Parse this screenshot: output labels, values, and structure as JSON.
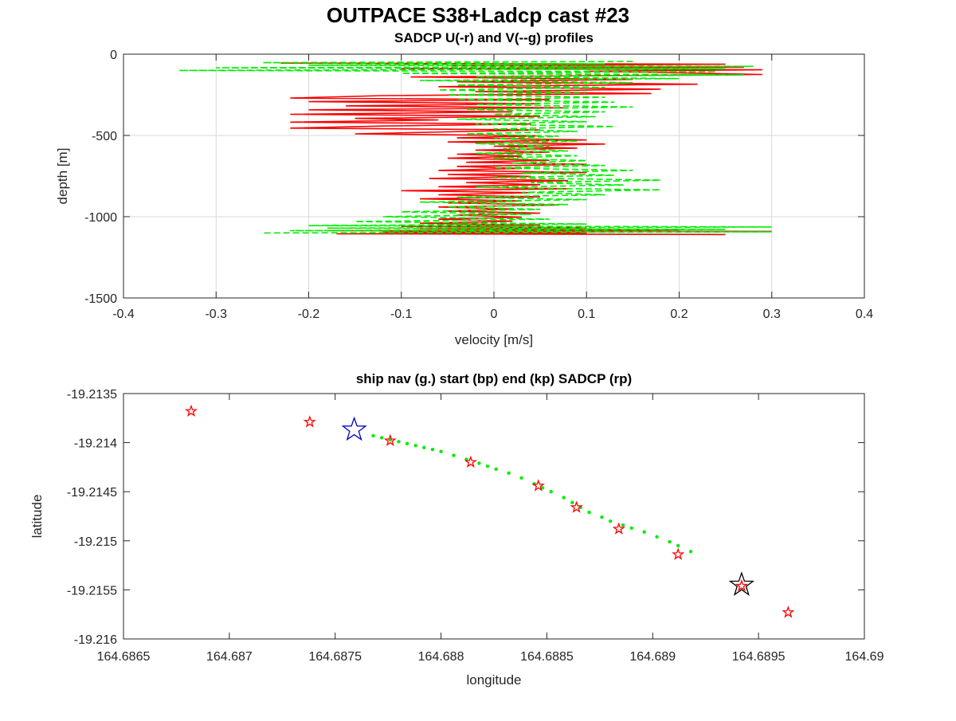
{
  "figure": {
    "title": "OUTPACE S38+Ladcp cast #23"
  },
  "colors": {
    "u_series": "#ff0000",
    "v_series": "#00ee00",
    "start_marker": "#0000cc",
    "end_marker": "#000000",
    "sadcp_marker": "#ff0000",
    "nav_points": "#00ee00"
  },
  "chart_data": [
    {
      "type": "line",
      "title": "SADCP U(-r) and V(--g) profiles",
      "xlabel": "velocity [m/s]",
      "ylabel": "depth [m]",
      "xlim": [
        -0.4,
        0.4
      ],
      "ylim": [
        -1500,
        0
      ],
      "xticks": [
        "-0.4",
        "-0.3",
        "-0.2",
        "-0.1",
        "0",
        "0.1",
        "0.2",
        "0.3",
        "0.4"
      ],
      "yticks": [
        "0",
        "-500",
        "-1000",
        "-1500"
      ],
      "grid": true,
      "series": [
        {
          "color": "red",
          "style": "solid",
          "points": [
            [
              -0.23,
              -55
            ],
            [
              0.25,
              -62
            ],
            [
              -0.05,
              -70
            ],
            [
              0.27,
              -80
            ],
            [
              -0.1,
              -88
            ],
            [
              0.29,
              -96
            ],
            [
              0.1,
              -105
            ],
            [
              0.2,
              -115
            ],
            [
              0.29,
              -125
            ],
            [
              -0.09,
              -140
            ],
            [
              0.15,
              -155
            ],
            [
              -0.04,
              -170
            ],
            [
              0.22,
              -185
            ],
            [
              -0.06,
              -200
            ],
            [
              0.18,
              -215
            ],
            [
              -0.02,
              -230
            ],
            [
              0.17,
              -242
            ],
            [
              -0.12,
              -255
            ],
            [
              -0.22,
              -270
            ],
            [
              0.06,
              -280
            ],
            [
              -0.2,
              -292
            ],
            [
              0.05,
              -305
            ],
            [
              -0.16,
              -318
            ],
            [
              0.08,
              -330
            ],
            [
              -0.2,
              -342
            ],
            [
              0.02,
              -355
            ],
            [
              -0.22,
              -370
            ],
            [
              0.05,
              -382
            ],
            [
              -0.15,
              -395
            ],
            [
              -0.06,
              -405
            ],
            [
              -0.22,
              -418
            ],
            [
              0.04,
              -430
            ],
            [
              -0.12,
              -442
            ],
            [
              -0.22,
              -455
            ],
            [
              0.05,
              -466
            ],
            [
              -0.05,
              -478
            ],
            [
              -0.15,
              -490
            ],
            [
              0.05,
              -502
            ],
            [
              -0.04,
              -515
            ],
            [
              0.1,
              -528
            ],
            [
              -0.05,
              -540
            ],
            [
              0.12,
              -553
            ],
            [
              0.0,
              -566
            ],
            [
              0.09,
              -578
            ],
            [
              -0.02,
              -590
            ],
            [
              0.06,
              -603
            ],
            [
              -0.04,
              -615
            ],
            [
              0.03,
              -628
            ],
            [
              -0.05,
              -640
            ],
            [
              0.06,
              -653
            ],
            [
              -0.03,
              -665
            ],
            [
              0.1,
              -678
            ],
            [
              -0.04,
              -690
            ],
            [
              0.03,
              -703
            ],
            [
              -0.06,
              -715
            ],
            [
              0.1,
              -728
            ],
            [
              -0.05,
              -740
            ],
            [
              0.04,
              -752
            ],
            [
              -0.07,
              -765
            ],
            [
              0.08,
              -778
            ],
            [
              -0.03,
              -790
            ],
            [
              0.05,
              -803
            ],
            [
              -0.06,
              -815
            ],
            [
              0.08,
              -828
            ],
            [
              -0.1,
              -840
            ],
            [
              0.04,
              -852
            ],
            [
              -0.06,
              -865
            ],
            [
              0.05,
              -878
            ],
            [
              -0.08,
              -890
            ],
            [
              0.03,
              -903
            ],
            [
              -0.05,
              -915
            ],
            [
              0.07,
              -928
            ],
            [
              -0.06,
              -940
            ],
            [
              0.02,
              -953
            ],
            [
              -0.05,
              -965
            ],
            [
              0.05,
              -978
            ],
            [
              -0.04,
              -990
            ],
            [
              0.03,
              -1003
            ],
            [
              -0.06,
              -1015
            ],
            [
              0.02,
              -1028
            ],
            [
              -0.08,
              -1040
            ],
            [
              0.05,
              -1052
            ],
            [
              -0.1,
              -1060
            ],
            [
              0.1,
              -1067
            ],
            [
              -0.08,
              -1073
            ],
            [
              0.2,
              -1080
            ],
            [
              -0.18,
              -1086
            ],
            [
              0.3,
              -1090
            ],
            [
              -0.12,
              -1095
            ],
            [
              0.1,
              -1100
            ],
            [
              -0.17,
              -1105
            ],
            [
              0.25,
              -1110
            ]
          ]
        },
        {
          "color": "green",
          "style": "dashed",
          "points": [
            [
              0.15,
              -45
            ],
            [
              -0.25,
              -52
            ],
            [
              0.12,
              -60
            ],
            [
              -0.2,
              -68
            ],
            [
              0.28,
              -75
            ],
            [
              -0.3,
              -84
            ],
            [
              0.25,
              -90
            ],
            [
              -0.34,
              -100
            ],
            [
              0.24,
              -108
            ],
            [
              -0.1,
              -118
            ],
            [
              0.27,
              -128
            ],
            [
              -0.02,
              -138
            ],
            [
              0.2,
              -150
            ],
            [
              -0.08,
              -162
            ],
            [
              0.15,
              -175
            ],
            [
              -0.04,
              -190
            ],
            [
              0.12,
              -205
            ],
            [
              -0.06,
              -220
            ],
            [
              0.1,
              -235
            ],
            [
              -0.05,
              -250
            ],
            [
              0.12,
              -265
            ],
            [
              -0.04,
              -280
            ],
            [
              0.13,
              -295
            ],
            [
              -0.02,
              -310
            ],
            [
              0.15,
              -325
            ],
            [
              -0.03,
              -340
            ],
            [
              0.12,
              -355
            ],
            [
              0.0,
              -370
            ],
            [
              0.11,
              -385
            ],
            [
              -0.04,
              -400
            ],
            [
              0.1,
              -415
            ],
            [
              -0.02,
              -430
            ],
            [
              0.13,
              -445
            ],
            [
              0.0,
              -460
            ],
            [
              0.09,
              -475
            ],
            [
              -0.03,
              -490
            ],
            [
              0.07,
              -505
            ],
            [
              0.0,
              -520
            ],
            [
              0.09,
              -535
            ],
            [
              -0.02,
              -550
            ],
            [
              0.06,
              -565
            ],
            [
              0.01,
              -580
            ],
            [
              0.08,
              -595
            ],
            [
              -0.02,
              -610
            ],
            [
              0.09,
              -625
            ],
            [
              0.0,
              -640
            ],
            [
              0.1,
              -655
            ],
            [
              0.02,
              -670
            ],
            [
              0.12,
              -685
            ],
            [
              0.0,
              -700
            ],
            [
              0.15,
              -715
            ],
            [
              0.03,
              -730
            ],
            [
              0.13,
              -745
            ],
            [
              0.0,
              -760
            ],
            [
              0.18,
              -775
            ],
            [
              0.04,
              -790
            ],
            [
              0.14,
              -805
            ],
            [
              -0.02,
              -820
            ],
            [
              0.18,
              -835
            ],
            [
              0.03,
              -850
            ],
            [
              0.12,
              -865
            ],
            [
              -0.04,
              -880
            ],
            [
              0.1,
              -895
            ],
            [
              -0.08,
              -910
            ],
            [
              0.08,
              -925
            ],
            [
              -0.05,
              -940
            ],
            [
              0.05,
              -955
            ],
            [
              -0.1,
              -970
            ],
            [
              0.04,
              -985
            ],
            [
              -0.12,
              -1000
            ],
            [
              0.06,
              -1015
            ],
            [
              -0.15,
              -1030
            ],
            [
              0.1,
              -1045
            ],
            [
              -0.2,
              -1055
            ],
            [
              0.3,
              -1063
            ],
            [
              -0.18,
              -1070
            ],
            [
              0.25,
              -1078
            ],
            [
              -0.22,
              -1086
            ],
            [
              0.3,
              -1093
            ],
            [
              -0.25,
              -1100
            ]
          ]
        }
      ]
    },
    {
      "type": "scatter",
      "title": "ship nav (g.) start (bp) end (kp) SADCP (rp)",
      "xlabel": "longitude",
      "ylabel": "latitude",
      "xlim": [
        164.6865,
        164.69
      ],
      "ylim": [
        -19.216,
        -19.2135
      ],
      "xticks": [
        "164.6865",
        "164.687",
        "164.6875",
        "164.688",
        "164.6885",
        "164.689",
        "164.6895",
        "164.69"
      ],
      "yticks": [
        "-19.2135",
        "-19.214",
        "-19.2145",
        "-19.215",
        "-19.2155",
        "-19.216"
      ],
      "grid": false,
      "nav_points": [
        [
          164.68768,
          -19.21393
        ],
        [
          164.68772,
          -19.21395
        ],
        [
          164.68776,
          -19.21397
        ],
        [
          164.6878,
          -19.21399
        ],
        [
          164.68784,
          -19.21401
        ],
        [
          164.68788,
          -19.21403
        ],
        [
          164.68792,
          -19.21405
        ],
        [
          164.68796,
          -19.21407
        ],
        [
          164.688,
          -19.21409
        ],
        [
          164.68806,
          -19.21413
        ],
        [
          164.68812,
          -19.21417
        ],
        [
          164.68818,
          -19.21421
        ],
        [
          164.68822,
          -19.21424
        ],
        [
          164.68826,
          -19.21427
        ],
        [
          164.68832,
          -19.21431
        ],
        [
          164.68838,
          -19.21436
        ],
        [
          164.68844,
          -19.21442
        ],
        [
          164.68848,
          -19.21446
        ],
        [
          164.68852,
          -19.2145
        ],
        [
          164.68858,
          -19.21456
        ],
        [
          164.68862,
          -19.21461
        ],
        [
          164.68866,
          -19.21466
        ],
        [
          164.6887,
          -19.21471
        ],
        [
          164.68876,
          -19.21476
        ],
        [
          164.6888,
          -19.2148
        ],
        [
          164.68886,
          -19.21484
        ],
        [
          164.6889,
          -19.21487
        ],
        [
          164.68896,
          -19.21491
        ],
        [
          164.68902,
          -19.21496
        ],
        [
          164.68908,
          -19.21501
        ],
        [
          164.68912,
          -19.21505
        ],
        [
          164.68918,
          -19.21511
        ]
      ],
      "sadcp_points": [
        [
          164.68682,
          -19.21368
        ],
        [
          164.68738,
          -19.21379
        ],
        [
          164.68776,
          -19.21398
        ],
        [
          164.68814,
          -19.2142
        ],
        [
          164.68846,
          -19.21444
        ],
        [
          164.68864,
          -19.21466
        ],
        [
          164.68884,
          -19.21488
        ],
        [
          164.68912,
          -19.21514
        ],
        [
          164.68942,
          -19.21546
        ],
        [
          164.68964,
          -19.21573
        ]
      ],
      "start_point": [
        164.68759,
        -19.21387
      ],
      "end_point": [
        164.68942,
        -19.21545
      ]
    }
  ]
}
